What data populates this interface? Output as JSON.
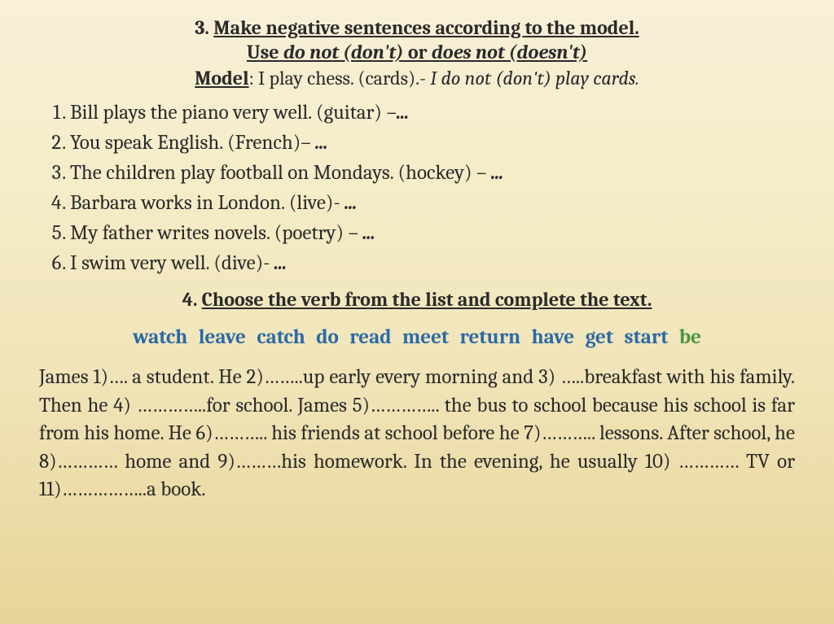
{
  "ex3": {
    "num": "3.",
    "title": "Make negative sentences according to the model.",
    "sub_prefix": "Use ",
    "sub_do_not": "do not (don't)",
    "sub_or": " or ",
    "sub_does_not": "does not (doesn't)",
    "model_label": "Model",
    "model_example_plain": ": I play chess. (cards).- ",
    "model_example_ital": "I do not (don't) play cards.",
    "items": [
      "Bill plays the piano very well. (guitar) –",
      "You speak English. (French)– ",
      "The children play football on Mondays. (hockey) – ",
      "Barbara works in London. (live)- ",
      "My father writes novels. (poetry) – ",
      "I swim very well. (dive)- "
    ],
    "ellipsis": "..."
  },
  "ex4": {
    "num": "4.",
    "title": "Choose the verb from the list and complete the text.",
    "verbs": [
      "watch",
      "leave",
      "catch",
      "do",
      "read",
      "meet",
      "return",
      "have",
      "get",
      "start"
    ],
    "verb_be": "be",
    "paragraph": "James 1)…. a student. He 2)……..up early every morning and 3) …..breakfast with his family. Then he 4) …………..for school. James 5)………….. the bus to school because his school is far from his home. He 6)……….. his friends at school before he 7)……….. lessons. After school, he 8)………… home and 9)………his homework. In the evening, he usually 10) ………… TV or 11)……………..a book."
  },
  "colors": {
    "text": "#2a2a2a",
    "verb_blue": "#2a6aa6",
    "verb_green": "#4a9440",
    "bg_top": "#f8f0d8",
    "bg_bottom": "#e8d498"
  }
}
